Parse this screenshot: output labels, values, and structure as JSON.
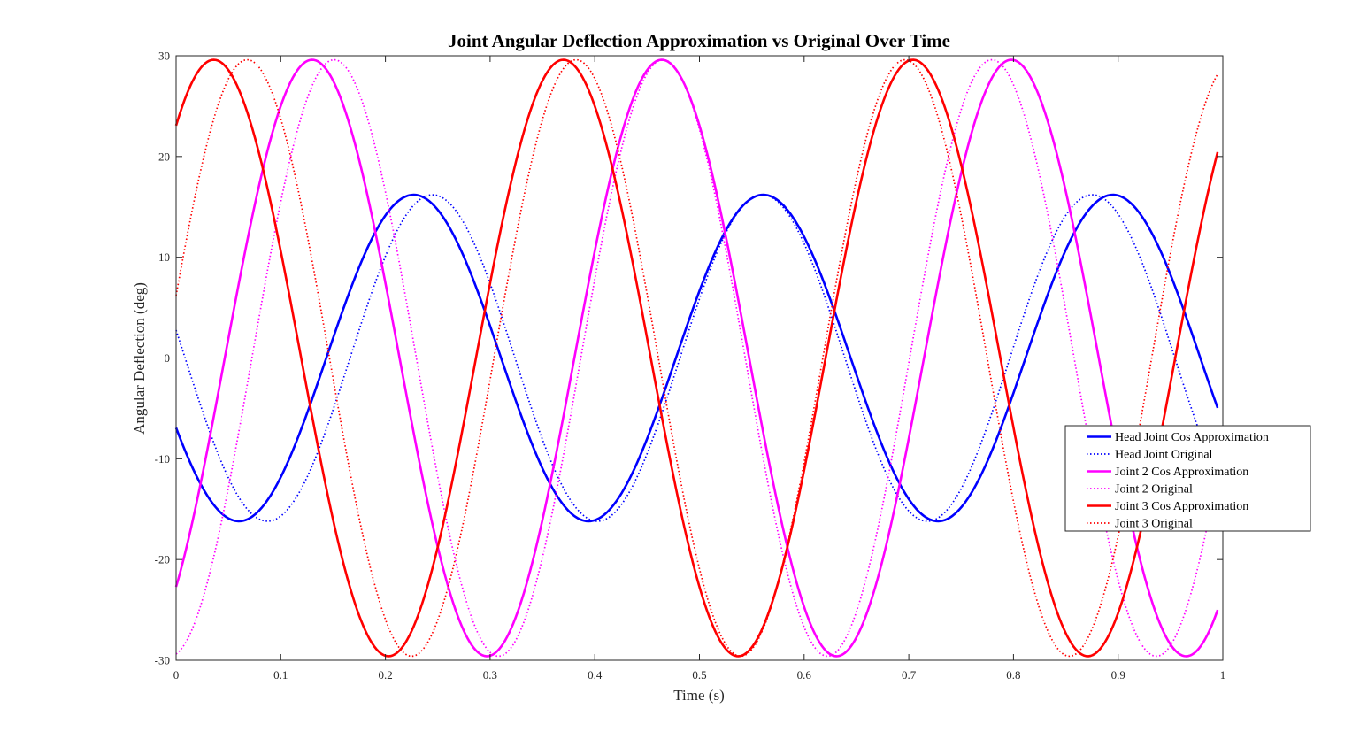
{
  "chart_data": {
    "type": "line",
    "title": "Joint Angular Deflection Approximation vs Original Over Time",
    "xlabel": "Time (s)",
    "ylabel": "Angular Deflection (deg)",
    "xlim": [
      0,
      1
    ],
    "ylim": [
      -30,
      30
    ],
    "x_ticks": [
      "0",
      "0.1",
      "0.2",
      "0.3",
      "0.4",
      "0.5",
      "0.6",
      "0.7",
      "0.8",
      "0.9",
      "1"
    ],
    "y_ticks": [
      "-30",
      "-20",
      "-10",
      "0",
      "10",
      "20",
      "30"
    ],
    "grid": false,
    "legend_position": "right",
    "x_end": 0.995,
    "series": [
      {
        "name": "Head Joint Cos Approximation",
        "color": "#0000ff",
        "style": "solid",
        "amplitude": 16.2,
        "period": 0.334,
        "peak_time": 0.227,
        "start_value": -6.8,
        "end_value": -4.7
      },
      {
        "name": "Head Joint Original",
        "color": "#0000ff",
        "style": "dotted",
        "amplitude": 16.2,
        "period": 0.3152,
        "peak_time": 0.245,
        "start_value": 2.9,
        "end_value": -6.6
      },
      {
        "name": "Joint 2 Cos Approximation",
        "color": "#ff00ff",
        "style": "solid",
        "amplitude": 29.6,
        "period": 0.334,
        "peak_time": 0.13,
        "start_value": -22.4,
        "end_value": -24.8
      },
      {
        "name": "Joint 2 Original",
        "color": "#ff00ff",
        "style": "dotted",
        "amplitude": 29.6,
        "period": 0.3142,
        "peak_time": 0.151,
        "start_value": -28.7,
        "end_value": -16.2
      },
      {
        "name": "Joint 3 Cos Approximation",
        "color": "#ff0000",
        "style": "solid",
        "amplitude": 29.6,
        "period": 0.334,
        "peak_time": 0.036,
        "start_value": 23.4,
        "end_value": 20.6
      },
      {
        "name": "Joint 3 Original",
        "color": "#ff0000",
        "style": "dotted",
        "amplitude": 29.6,
        "period": 0.3142,
        "peak_time": 0.068,
        "start_value": 10.2,
        "end_value": 28.3
      }
    ]
  }
}
